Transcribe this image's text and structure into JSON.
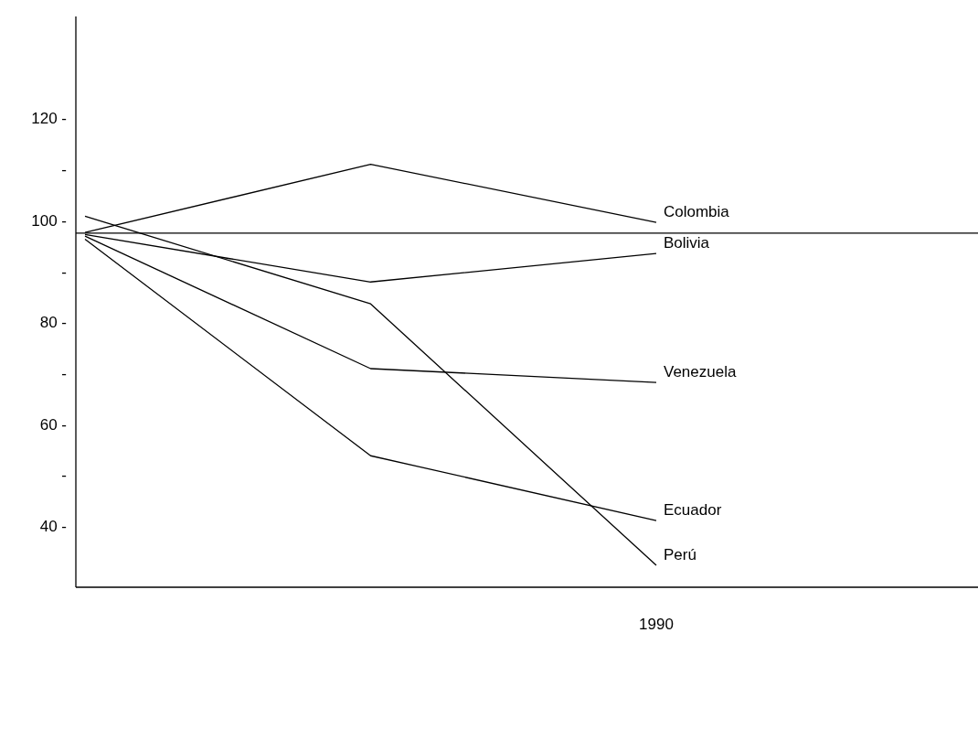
{
  "chart_data": {
    "type": "line",
    "categories": [
      null,
      null,
      "1990"
    ],
    "series": [
      {
        "name": "Colombia",
        "color": "#000000",
        "values": [
          97.6,
          111.0,
          99.6
        ]
      },
      {
        "name": "Bolivia",
        "color": "#000000",
        "values": [
          97.2,
          87.9,
          93.5
        ]
      },
      {
        "name": "Venezuela",
        "color": "#000000",
        "values": [
          96.9,
          70.9,
          68.2
        ]
      },
      {
        "name": "Ecuador",
        "color": "#000000",
        "values": [
          96.3,
          53.8,
          41.1
        ]
      },
      {
        "name": "Perú",
        "color": "#000000",
        "values": [
          100.8,
          83.6,
          32.3
        ]
      }
    ],
    "ylim": [
      28,
      140
    ],
    "yticks": [
      {
        "value": 120,
        "label": "120 -"
      },
      {
        "value": 110,
        "label": "-"
      },
      {
        "value": 100,
        "label": "100 -"
      },
      {
        "value": 90,
        "label": "-"
      },
      {
        "value": 80,
        "label": "80 -"
      },
      {
        "value": 70,
        "label": "-"
      },
      {
        "value": 60,
        "label": "60 -"
      },
      {
        "value": 50,
        "label": "-"
      },
      {
        "value": 40,
        "label": "40 -"
      }
    ],
    "ref_lines": [
      {
        "axis": "y",
        "value": 97.5,
        "label": null
      }
    ],
    "grid": false,
    "marker": "none",
    "line_style": "solid"
  }
}
